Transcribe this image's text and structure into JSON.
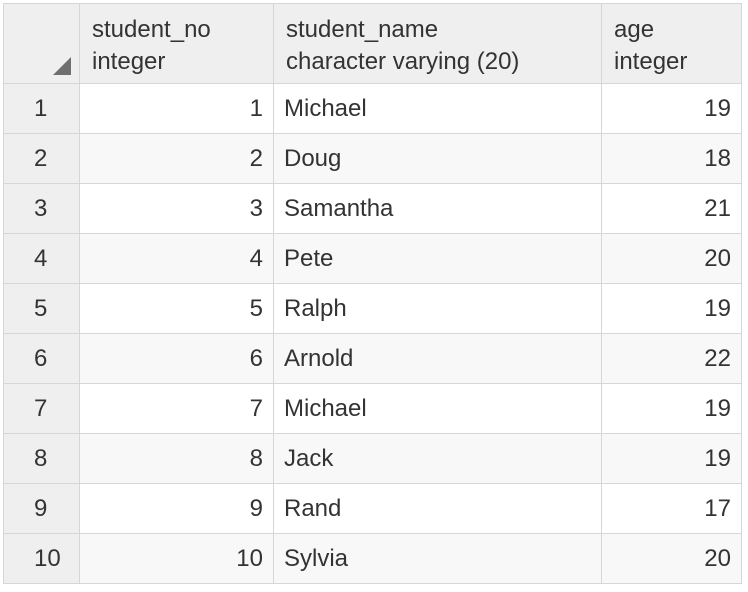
{
  "columns": [
    {
      "name": "student_no",
      "type": "integer"
    },
    {
      "name": "student_name",
      "type": "character varying (20)"
    },
    {
      "name": "age",
      "type": "integer"
    }
  ],
  "rows": [
    {
      "row_num": "1",
      "student_no": "1",
      "student_name": "Michael",
      "age": "19"
    },
    {
      "row_num": "2",
      "student_no": "2",
      "student_name": "Doug",
      "age": "18"
    },
    {
      "row_num": "3",
      "student_no": "3",
      "student_name": "Samantha",
      "age": "21"
    },
    {
      "row_num": "4",
      "student_no": "4",
      "student_name": "Pete",
      "age": "20"
    },
    {
      "row_num": "5",
      "student_no": "5",
      "student_name": "Ralph",
      "age": "19"
    },
    {
      "row_num": "6",
      "student_no": "6",
      "student_name": "Arnold",
      "age": "22"
    },
    {
      "row_num": "7",
      "student_no": "7",
      "student_name": "Michael",
      "age": "19"
    },
    {
      "row_num": "8",
      "student_no": "8",
      "student_name": "Jack",
      "age": "19"
    },
    {
      "row_num": "9",
      "student_no": "9",
      "student_name": "Rand",
      "age": "17"
    },
    {
      "row_num": "10",
      "student_no": "10",
      "student_name": "Sylvia",
      "age": "20"
    }
  ],
  "icons": {
    "corner": "select-all-triangle-icon"
  },
  "colors": {
    "header_bg": "#efefef",
    "border": "#d6d6d6",
    "alt_row_bg": "#f8f8f8",
    "text": "#333333"
  }
}
